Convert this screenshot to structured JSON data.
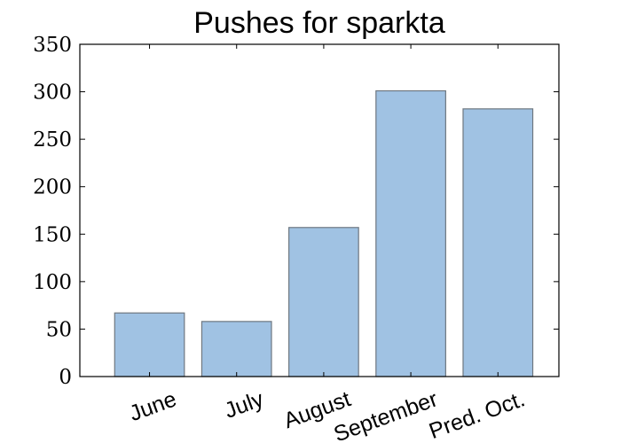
{
  "chart_data": {
    "type": "bar",
    "title": "Pushes for sparkta",
    "xlabel": "",
    "ylabel": "",
    "categories": [
      "June",
      "July",
      "August",
      "September",
      "Pred. Oct."
    ],
    "values": [
      67,
      58,
      157,
      301,
      282
    ],
    "ylim": [
      0,
      350
    ],
    "yticks": [
      0,
      50,
      100,
      150,
      200,
      250,
      300,
      350
    ],
    "grid": false,
    "legend": "none",
    "colors": {
      "bar_fill": "#a0c2e3",
      "bar_edge": "#6e7780",
      "axes": "#000000"
    }
  }
}
